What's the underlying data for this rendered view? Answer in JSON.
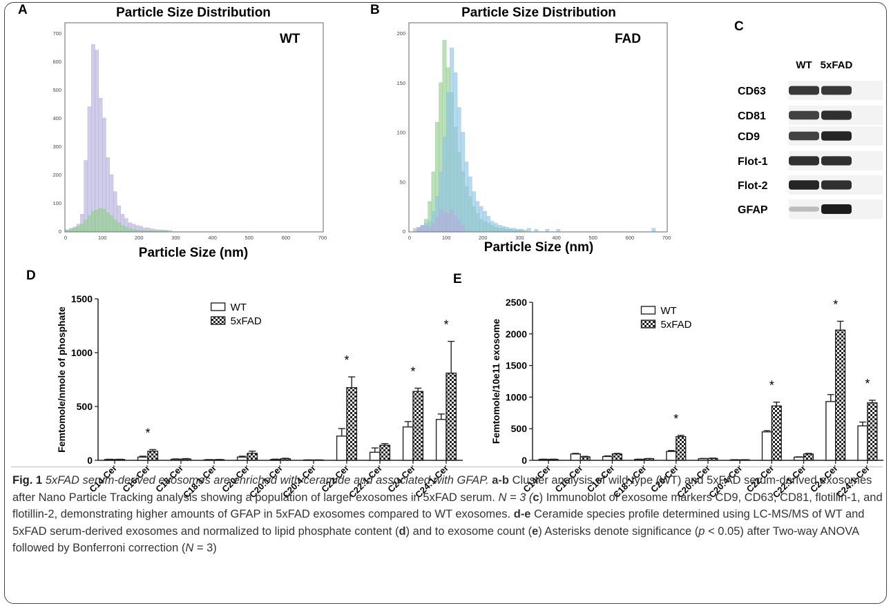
{
  "panels": {
    "A": {
      "letter": "A",
      "title": "Particle Size Distribution",
      "label": "WT",
      "xlabel": "Particle Size (nm)"
    },
    "B": {
      "letter": "B",
      "title": "Particle Size Distribution",
      "label": "FAD",
      "xlabel": "Particle Size (nm)"
    },
    "C": {
      "letter": "C",
      "cols": [
        "WT",
        "5xFAD"
      ],
      "rows": [
        "CD63",
        "CD81",
        "CD9",
        "Flot-1",
        "Flot-2",
        "GFAP"
      ],
      "band_intensity": [
        [
          0.85,
          0.85
        ],
        [
          0.8,
          0.9
        ],
        [
          0.8,
          0.95
        ],
        [
          0.9,
          0.9
        ],
        [
          0.95,
          0.9
        ],
        [
          0.15,
          1.0
        ]
      ]
    },
    "D": {
      "letter": "D"
    },
    "E": {
      "letter": "E"
    }
  },
  "colors": {
    "purple": "#b3aedb",
    "green": "#8fcd8a",
    "blue": "#8cc4e3",
    "bar": "#222222"
  },
  "chart_data": [
    {
      "panel": "A",
      "type": "bar",
      "title": "Particle Size Distribution",
      "xlabel": "Particle Size (nm)",
      "ylabel": "",
      "xlim": [
        0,
        700
      ],
      "ylim": [
        0,
        700
      ],
      "xticks": [
        0,
        100,
        200,
        300,
        400,
        500,
        600,
        700
      ],
      "yticks": [
        0,
        100,
        200,
        300,
        400,
        500,
        600,
        700
      ],
      "bin_width": 10,
      "series": [
        {
          "color": "purple",
          "x": [
            5,
            15,
            25,
            35,
            45,
            55,
            65,
            75,
            85,
            95,
            105,
            115,
            125,
            135,
            145,
            155,
            165,
            175,
            185,
            195,
            205,
            215,
            225,
            235,
            245,
            255,
            265,
            275,
            285
          ],
          "values": [
            5,
            10,
            15,
            25,
            60,
            250,
            440,
            660,
            640,
            470,
            400,
            260,
            200,
            140,
            90,
            60,
            45,
            30,
            25,
            20,
            18,
            12,
            12,
            8,
            6,
            5,
            4,
            3,
            2
          ]
        },
        {
          "color": "green",
          "x": [
            5,
            15,
            25,
            35,
            45,
            55,
            65,
            75,
            85,
            95,
            105,
            115,
            125,
            135,
            145,
            155,
            165,
            175,
            185,
            195,
            205,
            215,
            225,
            235,
            245,
            255,
            265,
            275
          ],
          "values": [
            4,
            8,
            12,
            18,
            25,
            40,
            55,
            70,
            75,
            80,
            78,
            65,
            55,
            40,
            30,
            20,
            15,
            10,
            6,
            4,
            3,
            2,
            2,
            1,
            1,
            1,
            1,
            1
          ]
        }
      ]
    },
    {
      "panel": "B",
      "type": "bar",
      "title": "Particle Size Distribution",
      "xlabel": "Particle Size (nm)",
      "ylabel": "",
      "xlim": [
        0,
        700
      ],
      "ylim": [
        0,
        200
      ],
      "xticks": [
        0,
        100,
        200,
        300,
        400,
        500,
        600,
        700
      ],
      "yticks": [
        0,
        50,
        100,
        150,
        200
      ],
      "bin_width": 10,
      "series": [
        {
          "color": "green",
          "x": [
            25,
            35,
            45,
            55,
            65,
            75,
            85,
            95,
            105,
            115,
            125,
            135,
            145,
            155,
            165,
            175,
            185,
            195,
            205,
            215,
            225,
            235,
            245,
            255,
            265,
            275,
            285,
            295,
            305,
            315
          ],
          "values": [
            2,
            5,
            12,
            30,
            60,
            110,
            150,
            193,
            165,
            140,
            105,
            80,
            60,
            45,
            35,
            25,
            18,
            12,
            10,
            8,
            6,
            4,
            3,
            3,
            2,
            2,
            1,
            1,
            1,
            1
          ]
        },
        {
          "color": "blue",
          "x": [
            25,
            35,
            45,
            55,
            65,
            75,
            85,
            95,
            105,
            115,
            125,
            135,
            145,
            155,
            165,
            175,
            185,
            195,
            205,
            215,
            225,
            235,
            245,
            255,
            265,
            275,
            285,
            295,
            305,
            325,
            345,
            375,
            405,
            665
          ],
          "values": [
            4,
            6,
            8,
            10,
            20,
            35,
            60,
            95,
            140,
            185,
            160,
            125,
            100,
            70,
            55,
            40,
            30,
            25,
            20,
            15,
            10,
            8,
            6,
            5,
            4,
            3,
            3,
            2,
            2,
            3,
            2,
            2,
            2,
            3
          ]
        },
        {
          "color": "purple",
          "x": [
            15,
            25,
            35,
            45,
            55,
            65,
            75,
            85,
            95,
            105,
            115,
            125,
            135,
            145
          ],
          "values": [
            3,
            4,
            6,
            5,
            4,
            8,
            14,
            22,
            20,
            18,
            22,
            16,
            10,
            6
          ]
        }
      ]
    },
    {
      "panel": "D",
      "type": "bar",
      "ylabel": "Femtomole/nmole of phosphate",
      "ylim": [
        0,
        1500
      ],
      "yticks": [
        0,
        500,
        1000,
        1500
      ],
      "categories": [
        "C14-Cer",
        "C16-Cer",
        "C18-Cer",
        "C18:1-Cer",
        "C20-Cer",
        "C20:1-Cer",
        "C20:4-Cer",
        "C22-Cer",
        "C22:1-Cer",
        "C24-Cer",
        "C24:1-Cer"
      ],
      "series": [
        {
          "name": "WT",
          "values": [
            8,
            30,
            10,
            5,
            30,
            8,
            3,
            225,
            75,
            310,
            380
          ],
          "errors": [
            2,
            8,
            3,
            2,
            8,
            3,
            1,
            70,
            40,
            50,
            50
          ]
        },
        {
          "name": "5xFAD",
          "values": [
            8,
            85,
            12,
            6,
            65,
            14,
            3,
            675,
            140,
            640,
            810
          ],
          "errors": [
            2,
            15,
            4,
            2,
            20,
            5,
            1,
            100,
            15,
            30,
            295
          ]
        }
      ],
      "significant": [
        1,
        7,
        9,
        10
      ],
      "asterisk": "*"
    },
    {
      "panel": "E",
      "type": "bar",
      "ylabel": "Femtomole/10e11 exosome",
      "ylim": [
        0,
        2500
      ],
      "yticks": [
        0,
        500,
        1000,
        1500,
        2000,
        2500
      ],
      "categories": [
        "C14-Cer",
        "C16-Cer",
        "C18-Cer",
        "C18:1-Cer",
        "C20-Cer",
        "C20:1-Cer",
        "C20:4-Cer",
        "C22-Cer",
        "C22:1-Cer",
        "C24-Cer",
        "C24:1-Cer"
      ],
      "series": [
        {
          "name": "WT",
          "values": [
            15,
            100,
            60,
            15,
            140,
            25,
            8,
            450,
            50,
            930,
            545
          ],
          "errors": [
            3,
            10,
            10,
            3,
            15,
            5,
            2,
            20,
            5,
            110,
            60
          ]
        },
        {
          "name": "5xFAD",
          "values": [
            15,
            55,
            100,
            25,
            375,
            30,
            8,
            860,
            100,
            2060,
            910
          ],
          "errors": [
            3,
            8,
            10,
            4,
            20,
            5,
            2,
            60,
            10,
            140,
            40
          ]
        }
      ],
      "significant": [
        4,
        7,
        9,
        10
      ],
      "asterisk": "*"
    }
  ],
  "caption": {
    "fig": "Fig. 1",
    "title": "5xFAD serum-derived exosomes are enriched with ceramide and associated with GFAP.",
    "p1_label": "a-b",
    "p1": "Cluster analysis of wild type (WT) and 5xFAD serum-derived exosomes after Nano Particle Tracking analysis showing a population of larger exosomes in 5xFAD serum.",
    "n1": "N = 3 (",
    "c_label": "c",
    "p2": ") Immunoblot of exosome markers CD9, CD63, CD81, flotillin-1, and flotillin-2, demonstrating higher amounts of GFAP in 5xFAD exosomes compared to WT exosomes.",
    "p3_label": "d-e",
    "p3": "Ceramide species profile determined using LC-MS/MS of WT and 5xFAD serum-derived exosomes and normalized to lipid phosphate content (",
    "d_label": "d",
    "p4": ") and to exosome count (",
    "e_label": "e",
    "p5": ") Asterisks denote significance (",
    "p_italic": "p",
    "p6": " < 0.05) after Two-way ANOVA followed by Bonferroni correction (",
    "n_italic": "N",
    "p7": " = 3)"
  }
}
